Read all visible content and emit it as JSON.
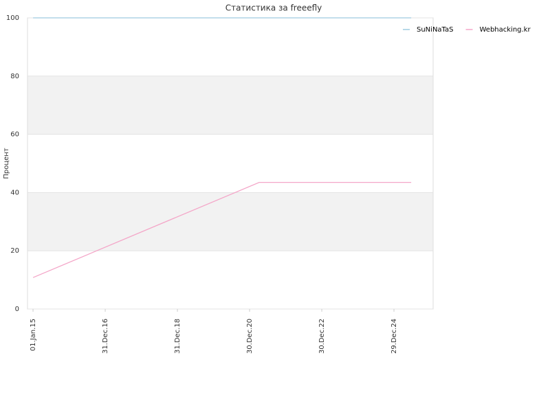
{
  "chart_data": {
    "type": "line",
    "title": "Статистика за freeefly",
    "y_label": "Процент",
    "xlim": [
      "2014-11-06",
      "2026-01-29"
    ],
    "xticks": [
      {
        "value": "2015-01-01",
        "label": "01.Jan.15"
      },
      {
        "value": "2016-12-31",
        "label": "31.Dec.16"
      },
      {
        "value": "2018-12-31",
        "label": "31.Dec.18"
      },
      {
        "value": "2020-12-30",
        "label": "30.Dec.20"
      },
      {
        "value": "2022-12-30",
        "label": "30.Dec.22"
      },
      {
        "value": "2024-12-29",
        "label": "29.Dec.24"
      }
    ],
    "ylim": [
      0,
      100
    ],
    "yticks": [
      0,
      20,
      40,
      60,
      80,
      100
    ],
    "grid": true,
    "legend": "top-right",
    "series": [
      {
        "name": "SuNiNaTaS",
        "color": "#9ecae1",
        "x": [
          "2015-01-01",
          "2025-06-21"
        ],
        "values": [
          100,
          100
        ]
      },
      {
        "name": "Webhacking.kr",
        "color": "#f4a6c8",
        "x": [
          "2015-01-01",
          "2021-04-06",
          "2025-06-21"
        ],
        "values": [
          10.8,
          43.5,
          43.5
        ]
      }
    ]
  }
}
